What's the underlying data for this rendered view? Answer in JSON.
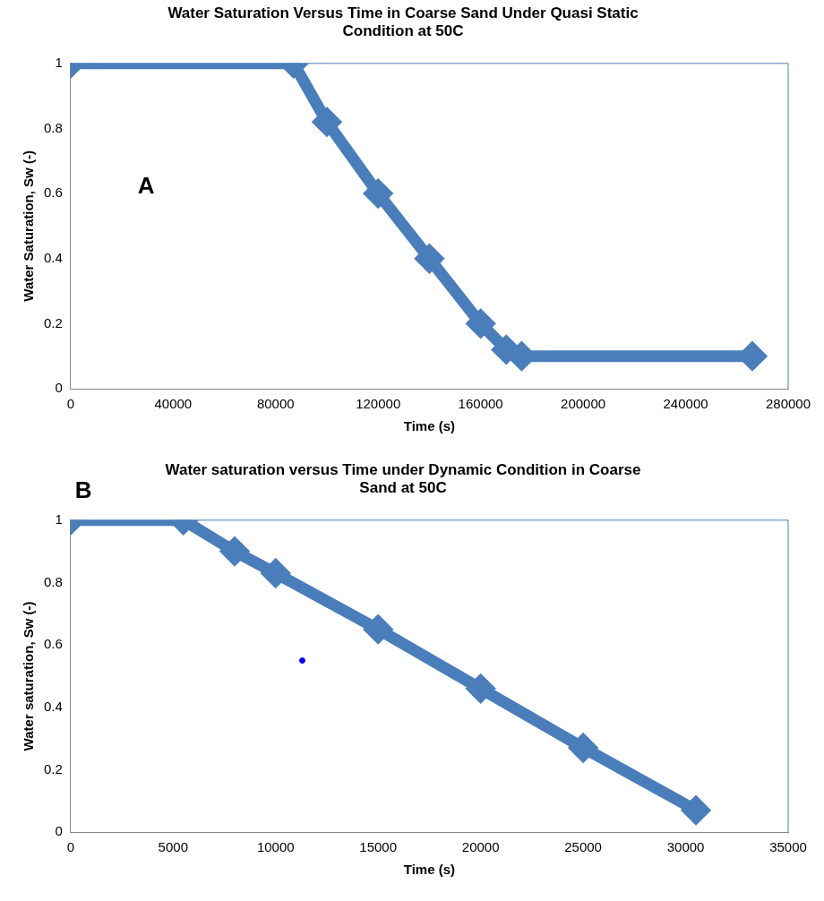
{
  "chart_data": [
    {
      "type": "line",
      "title": "Water Saturation Versus Time in Coarse Sand Under Quasi Static Condition at 50C",
      "xlabel": "Time (s)",
      "ylabel": "Water Saturation, Sw (-)",
      "annotations": [
        "A"
      ],
      "series": [
        {
          "color": "#4a7ebb",
          "x": [
            0,
            87000,
            100000,
            120000,
            140000,
            160000,
            170000,
            176000,
            266000
          ],
          "values": [
            1,
            1,
            0.82,
            0.6,
            0.4,
            0.2,
            0.12,
            0.1,
            0.1
          ]
        }
      ],
      "xlim": [
        0,
        280000
      ],
      "xticks": [
        0,
        40000,
        80000,
        120000,
        160000,
        200000,
        240000,
        280000
      ],
      "ylim": [
        0,
        1
      ],
      "yticks": [
        0,
        0.2,
        0.4,
        0.6,
        0.8,
        1
      ],
      "grid": false,
      "legend": false,
      "marker": "diamond",
      "line_style": "solid"
    },
    {
      "type": "line",
      "title": "Water saturation versus Time under Dynamic Condition in Coarse Sand at 50C",
      "xlabel": "Time (s)",
      "ylabel": "Water saturation, Sw (-)",
      "annotations": [
        "B"
      ],
      "series": [
        {
          "color": "#4a7ebb",
          "x": [
            0,
            5500,
            8000,
            10000,
            15000,
            20000,
            25000,
            30500
          ],
          "values": [
            1,
            1,
            0.9,
            0.83,
            0.65,
            0.46,
            0.27,
            0.07
          ]
        },
        {
          "type": "scatter",
          "marker": "circle",
          "color": "#0000ff",
          "x": [
            11300
          ],
          "values": [
            0.55
          ]
        }
      ],
      "xlim": [
        0,
        35000
      ],
      "xticks": [
        0,
        5000,
        10000,
        15000,
        20000,
        25000,
        30000,
        35000
      ],
      "ylim": [
        0,
        1
      ],
      "yticks": [
        0,
        0.2,
        0.4,
        0.6,
        0.8,
        1
      ],
      "grid": false,
      "legend": false,
      "marker": "diamond",
      "line_style": "solid"
    }
  ]
}
